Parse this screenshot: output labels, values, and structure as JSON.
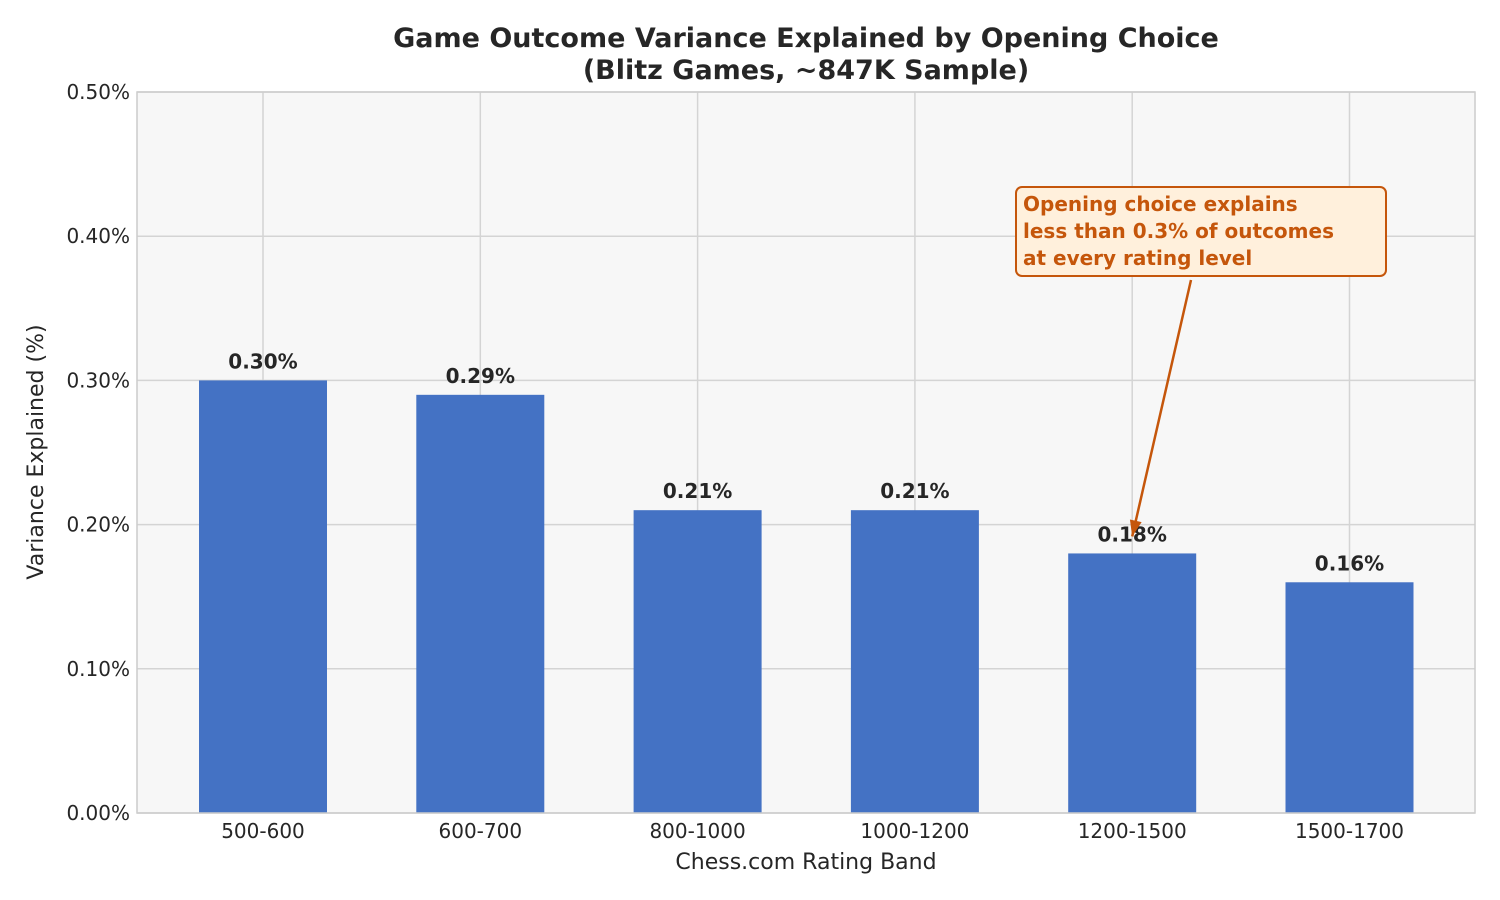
{
  "chart_data": {
    "type": "bar",
    "title": "Game Outcome Variance Explained by Opening Choice",
    "subtitle": "(Blitz Games, ~847K Sample)",
    "xlabel": "Chess.com Rating Band",
    "ylabel": "Variance Explained (%)",
    "categories": [
      "500-600",
      "600-700",
      "800-1000",
      "1000-1200",
      "1200-1500",
      "1500-1700"
    ],
    "values": [
      0.3,
      0.29,
      0.21,
      0.21,
      0.18,
      0.16
    ],
    "data_labels": [
      "0.30%",
      "0.29%",
      "0.21%",
      "0.21%",
      "0.18%",
      "0.16%"
    ],
    "ylim": [
      0,
      0.5
    ],
    "yticks": [
      0.0,
      0.1,
      0.2,
      0.3,
      0.4,
      0.5
    ],
    "ytick_labels": [
      "0.00%",
      "0.10%",
      "0.20%",
      "0.30%",
      "0.40%",
      "0.50%"
    ],
    "grid": true,
    "annotation": {
      "lines": [
        "Opening choice explains",
        "less than 0.3% of outcomes",
        "at every rating level"
      ],
      "points_to_category": "1200-1500",
      "points_to_value": 0.18
    },
    "colors": {
      "bar": "#4472C4",
      "plot_background": "#F7F7F7",
      "grid": "#D4D4D4",
      "annotation_text": "#C5560B",
      "annotation_fill": "#FFF0DC",
      "annotation_border": "#C5560B"
    }
  }
}
